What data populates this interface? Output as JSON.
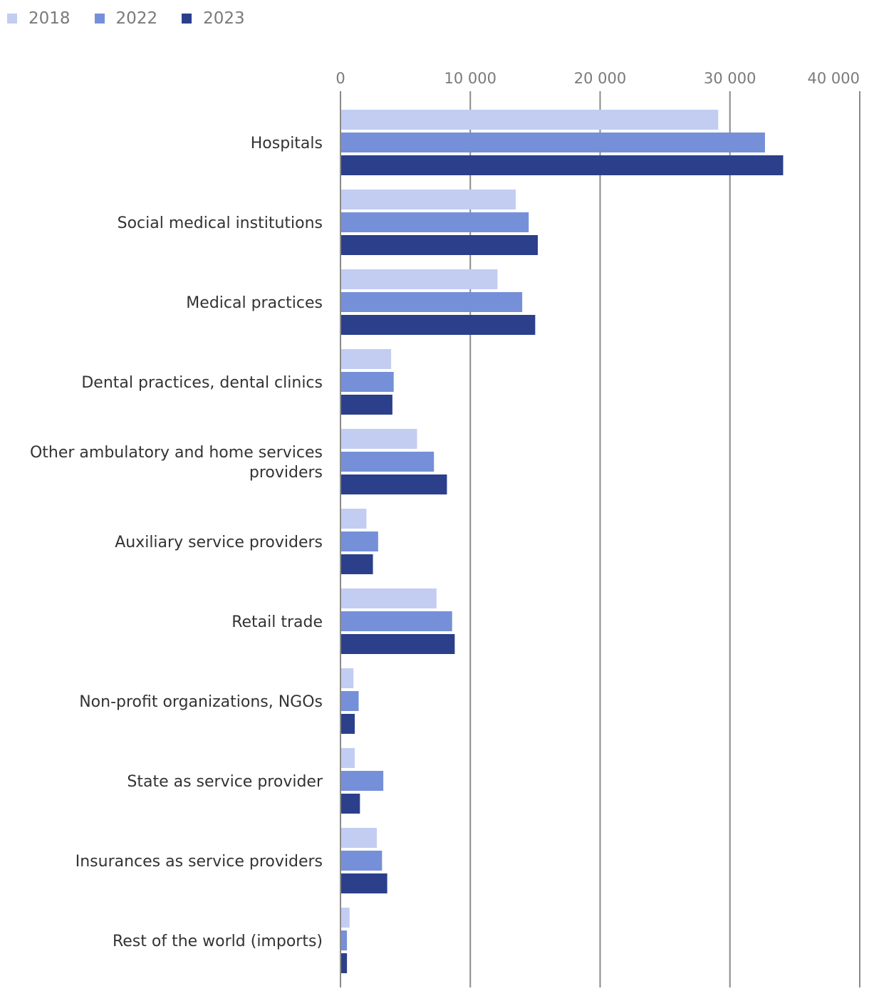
{
  "chart_data": {
    "type": "bar",
    "orientation": "horizontal",
    "categories": [
      "Hospitals",
      "Social medical institutions",
      "Medical practices",
      "Dental practices, dental clinics",
      "Other ambulatory and home services providers",
      "Auxiliary service providers",
      "Retail trade",
      "Non-profit organizations, NGOs",
      "State as service provider",
      "Insurances as service providers",
      "Rest of the world (imports)"
    ],
    "category_label_lines": [
      [
        "Hospitals"
      ],
      [
        "Social medical institutions"
      ],
      [
        "Medical practices"
      ],
      [
        "Dental practices, dental clinics"
      ],
      [
        "Other ambulatory and home services",
        "providers"
      ],
      [
        "Auxiliary service providers"
      ],
      [
        "Retail trade"
      ],
      [
        "Non-profit organizations, NGOs"
      ],
      [
        "State as service provider"
      ],
      [
        "Insurances as service providers"
      ],
      [
        "Rest of the world (imports)"
      ]
    ],
    "series": [
      {
        "name": "2018",
        "color": "#c3cdf2",
        "values": [
          29100,
          13500,
          12100,
          3900,
          5900,
          2000,
          7400,
          1000,
          1100,
          2800,
          700
        ]
      },
      {
        "name": "2022",
        "color": "#7590d8",
        "values": [
          32700,
          14500,
          14000,
          4100,
          7200,
          2900,
          8600,
          1400,
          3300,
          3200,
          500
        ]
      },
      {
        "name": "2023",
        "color": "#2b3f8a",
        "values": [
          34100,
          15200,
          15000,
          4000,
          8200,
          2500,
          8800,
          1100,
          1500,
          3600,
          500
        ]
      }
    ],
    "xlim": [
      0,
      40000
    ],
    "x_ticks": [
      0,
      10000,
      20000,
      30000,
      40000
    ],
    "x_tick_labels": [
      "0",
      "10 000",
      "20 000",
      "30 000",
      "40 000"
    ],
    "grid": true,
    "legend_position": "top-left",
    "title": "",
    "xlabel": "",
    "ylabel": ""
  }
}
